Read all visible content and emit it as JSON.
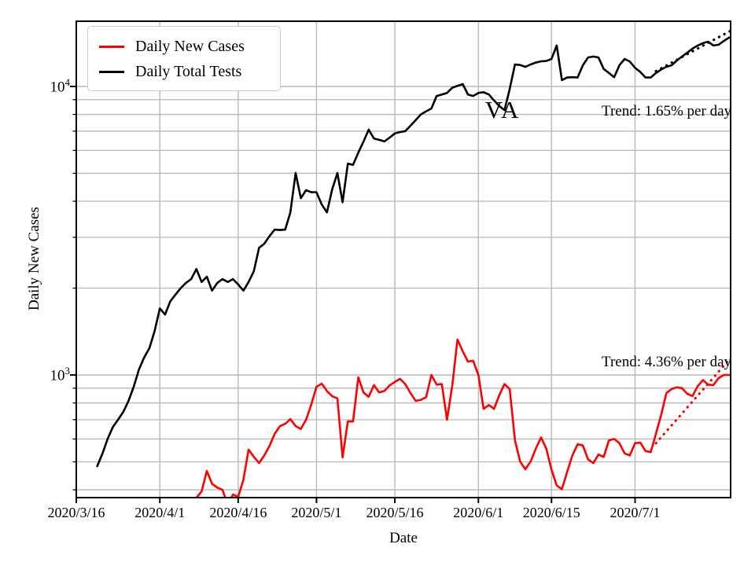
{
  "chart_data": {
    "type": "line",
    "state_annotation": "VA",
    "xlabel": "Date",
    "ylabel": "Daily New Cases",
    "yscale": "log",
    "ylim": [
      375.8,
      16830
    ],
    "x_domain_days": [
      0,
      125.3
    ],
    "x_tick_days": [
      0,
      16,
      31,
      46,
      61,
      77,
      91,
      107
    ],
    "x_tick_labels": [
      "2020/3/16",
      "2020/4/1",
      "2020/4/16",
      "2020/5/1",
      "2020/5/16",
      "2020/6/1",
      "2020/6/15",
      "2020/7/1"
    ],
    "y_major_ticks": [
      {
        "value": 1000,
        "base": "10",
        "exp": "3"
      },
      {
        "value": 10000,
        "base": "10",
        "exp": "4"
      }
    ],
    "y_minor_ticks": [
      400,
      500,
      600,
      700,
      800,
      900,
      2000,
      3000,
      4000,
      5000,
      6000,
      7000,
      8000,
      9000
    ],
    "grid_color": "#b8b8b8",
    "series": [
      {
        "name": "Daily New Cases",
        "color": "#ff0000",
        "start_day": 23,
        "values": [
          375,
          395,
          465,
          420,
          407,
          400,
          355,
          385,
          378,
          433,
          551,
          520,
          495,
          526,
          568,
          625,
          665,
          677,
          703,
          665,
          650,
          700,
          790,
          910,
          933,
          880,
          843,
          830,
          518,
          690,
          690,
          982,
          870,
          840,
          922,
          870,
          880,
          920,
          946,
          970,
          930,
          865,
          813,
          820,
          838,
          1000,
          926,
          930,
          700,
          920,
          1327,
          1208,
          1113,
          1120,
          1000,
          763,
          787,
          763,
          850,
          930,
          894,
          593,
          501,
          471,
          501,
          556,
          607,
          556,
          470,
          414,
          402,
          462,
          526,
          575,
          570,
          510,
          495,
          530,
          520,
          593,
          600,
          580,
          535,
          526,
          580,
          583,
          545,
          540,
          625,
          727,
          865,
          894,
          906,
          900,
          860,
          845,
          915,
          960,
          926,
          922,
          975,
          1000,
          1000
        ]
      },
      {
        "name": "Daily Total Tests",
        "color": "#000000",
        "start_day": 4,
        "values": [
          483,
          533,
          600,
          660,
          700,
          745,
          813,
          910,
          1045,
          1150,
          1240,
          1420,
          1700,
          1620,
          1800,
          1900,
          2000,
          2085,
          2150,
          2330,
          2100,
          2190,
          1960,
          2085,
          2150,
          2100,
          2150,
          2060,
          1960,
          2100,
          2290,
          2760,
          2850,
          3030,
          3190,
          3180,
          3190,
          3660,
          5010,
          4100,
          4370,
          4300,
          4300,
          3900,
          3660,
          4400,
          5010,
          3970,
          5400,
          5350,
          5900,
          6440,
          7080,
          6600,
          6530,
          6450,
          6650,
          6870,
          6950,
          7000,
          7310,
          7650,
          8000,
          8200,
          8390,
          9270,
          9380,
          9500,
          9900,
          10050,
          10190,
          9380,
          9270,
          9500,
          9550,
          9380,
          8940,
          8550,
          8280,
          9800,
          11920,
          11870,
          11700,
          11920,
          12100,
          12220,
          12250,
          12450,
          13860,
          10520,
          10740,
          10770,
          10740,
          11840,
          12600,
          12700,
          12600,
          11500,
          11130,
          10770,
          11840,
          12450,
          12200,
          11600,
          11230,
          10740,
          10740,
          11130,
          11450,
          11700,
          11840,
          12300,
          12700,
          13100,
          13520,
          13860,
          14130,
          14300,
          13860,
          13950,
          14390,
          14760
        ]
      }
    ],
    "trends": [
      {
        "series": "Daily Total Tests",
        "label": "Trend: 1.65% per day",
        "rate_pct_per_day": 1.65,
        "color": "#000000",
        "start_day": 111,
        "start_value": 11300,
        "end_day": 125.3,
        "end_value": 15600
      },
      {
        "series": "Daily New Cases",
        "label": "Trend: 4.36% per day",
        "rate_pct_per_day": 4.36,
        "color": "#ff0000",
        "start_day": 111,
        "start_value": 580,
        "end_day": 125.3,
        "end_value": 1145
      }
    ],
    "legend_position": "upper left",
    "grid": true
  }
}
